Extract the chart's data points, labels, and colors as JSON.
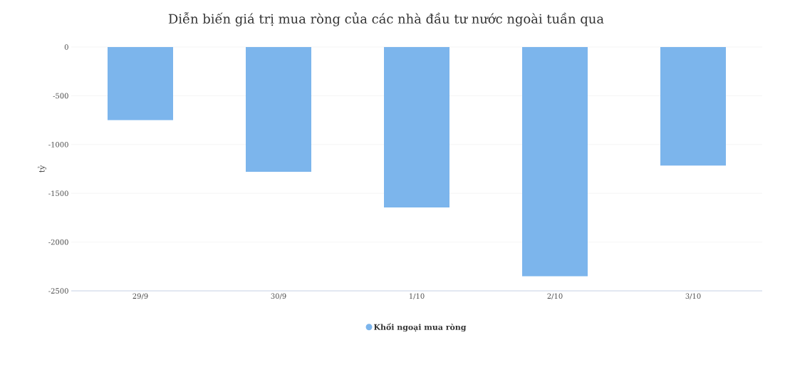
{
  "chart_data": {
    "type": "bar",
    "title": "Diễn biến giá trị mua ròng của các nhà đầu tư nước ngoài tuần qua",
    "ylabel": "tỷ",
    "categories": [
      "29/9",
      "30/9",
      "1/10",
      "2/10",
      "3/10"
    ],
    "series": [
      {
        "name": "Khối ngoại mua ròng",
        "color": "#7cb5ec",
        "values": [
          -750,
          -1280,
          -1645,
          -2350,
          -1215
        ]
      }
    ],
    "ylim": [
      -2500,
      0
    ],
    "yticks": [
      -2500,
      -2000,
      -1500,
      -1000,
      -500,
      0
    ],
    "grid": "y",
    "legend": "bottom"
  }
}
